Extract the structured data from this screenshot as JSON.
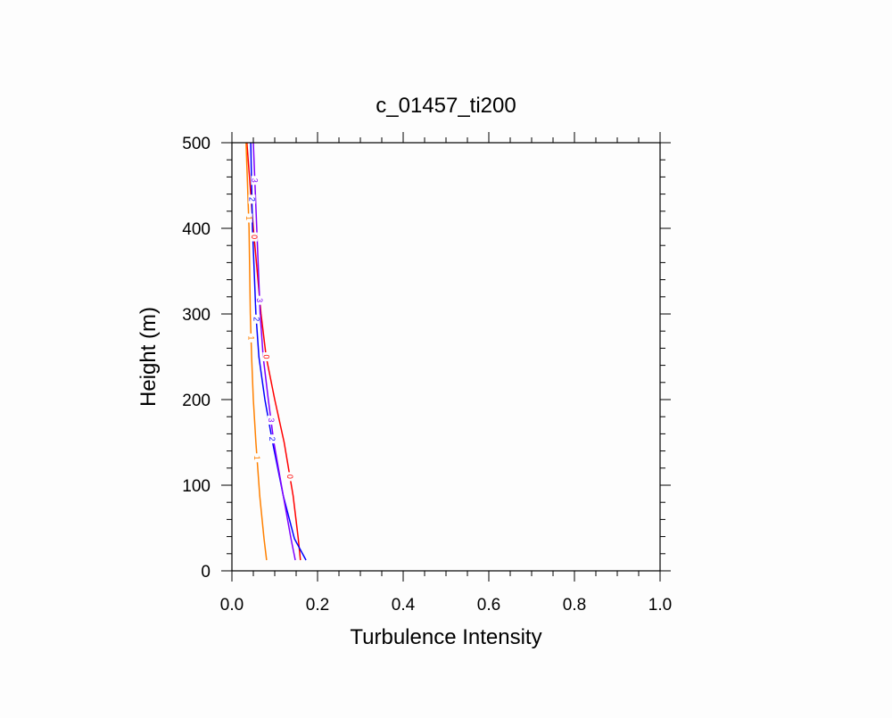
{
  "chart_data": {
    "type": "line",
    "title": "c_01457_ti200",
    "xlabel": "Turbulence Intensity",
    "ylabel": "Height (m)",
    "xlim": [
      0,
      1
    ],
    "ylim": [
      0,
      500
    ],
    "xticks": [
      "0.0",
      "0.2",
      "0.4",
      "0.6",
      "0.8",
      "1.0"
    ],
    "yticks": [
      "0",
      "100",
      "200",
      "300",
      "400",
      "500"
    ],
    "grid": false,
    "series": [
      {
        "name": "0",
        "color": "#ff0000",
        "x": [
          0.16,
          0.155,
          0.143,
          0.122,
          0.1,
          0.08,
          0.068,
          0.05,
          0.035
        ],
        "y": [
          12.5,
          37.5,
          87.5,
          150,
          200,
          250,
          300,
          400,
          500
        ]
      },
      {
        "name": "1",
        "color": "#ff8000",
        "x": [
          0.081,
          0.075,
          0.065,
          0.056,
          0.05,
          0.046,
          0.043,
          0.04,
          0.033
        ],
        "y": [
          12.5,
          37.5,
          87.5,
          150,
          200,
          250,
          300,
          400,
          500
        ]
      },
      {
        "name": "2",
        "color": "#0000ff",
        "x": [
          0.173,
          0.146,
          0.12,
          0.095,
          0.077,
          0.063,
          0.056,
          0.048,
          0.044
        ],
        "y": [
          12.5,
          37.5,
          87.5,
          150,
          200,
          250,
          300,
          400,
          500
        ]
      },
      {
        "name": "3",
        "color": "#8000ff",
        "x": [
          0.148,
          0.138,
          0.12,
          0.098,
          0.085,
          0.073,
          0.066,
          0.058,
          0.05
        ],
        "y": [
          12.5,
          37.5,
          87.5,
          150,
          200,
          250,
          300,
          400,
          500
        ]
      }
    ]
  }
}
